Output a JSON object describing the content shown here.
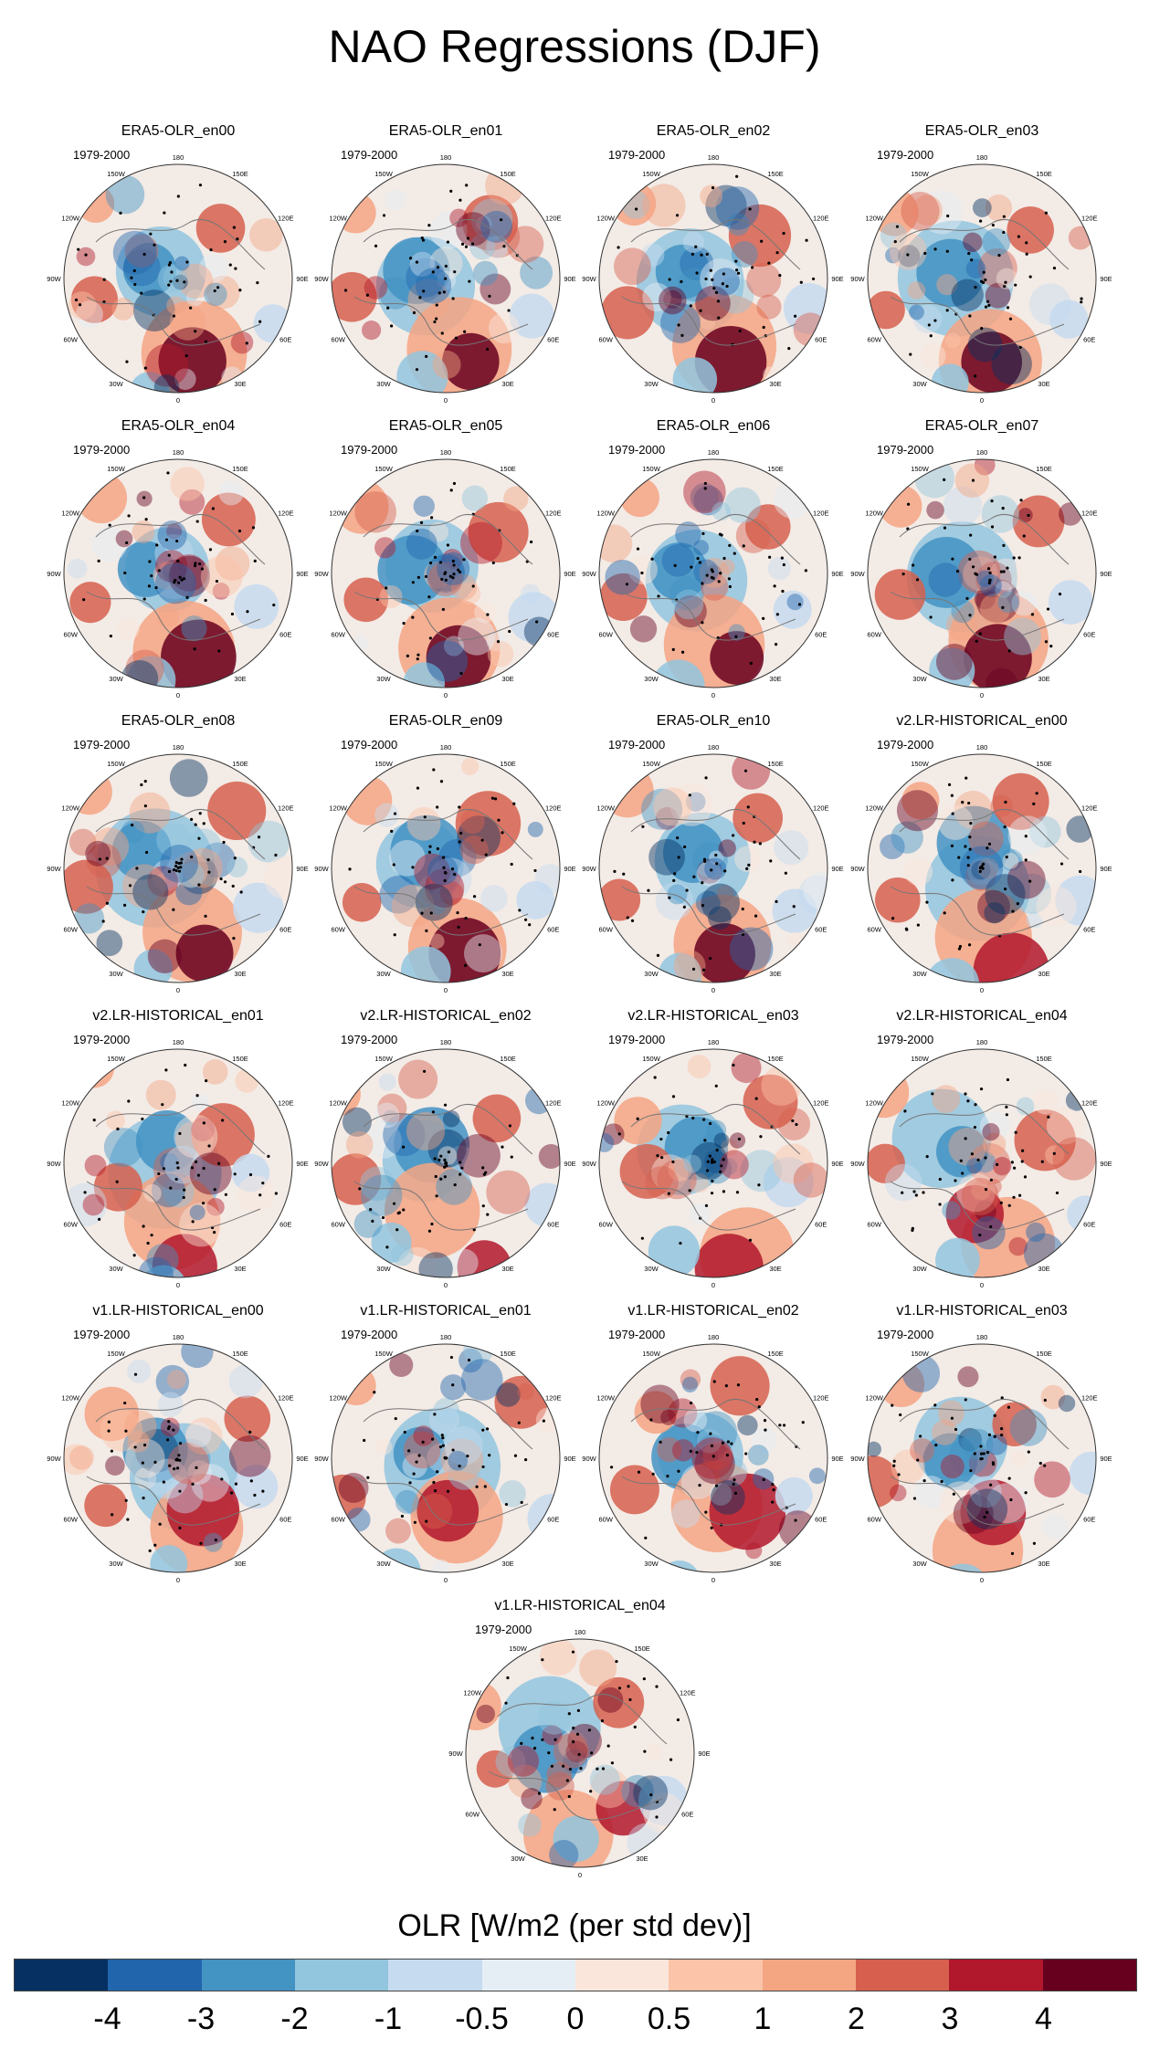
{
  "figure": {
    "title": "NAO Regressions (DJF)"
  },
  "panels": [
    {
      "title": "ERA5-OLR_en00",
      "period": "1979-2000"
    },
    {
      "title": "ERA5-OLR_en01",
      "period": "1979-2000"
    },
    {
      "title": "ERA5-OLR_en02",
      "period": "1979-2000"
    },
    {
      "title": "ERA5-OLR_en03",
      "period": "1979-2000"
    },
    {
      "title": "ERA5-OLR_en04",
      "period": "1979-2000"
    },
    {
      "title": "ERA5-OLR_en05",
      "period": "1979-2000"
    },
    {
      "title": "ERA5-OLR_en06",
      "period": "1979-2000"
    },
    {
      "title": "ERA5-OLR_en07",
      "period": "1979-2000"
    },
    {
      "title": "ERA5-OLR_en08",
      "period": "1979-2000"
    },
    {
      "title": "ERA5-OLR_en09",
      "period": "1979-2000"
    },
    {
      "title": "ERA5-OLR_en10",
      "period": "1979-2000"
    },
    {
      "title": "v2.LR-HISTORICAL_en00",
      "period": "1979-2000"
    },
    {
      "title": "v2.LR-HISTORICAL_en01",
      "period": "1979-2000"
    },
    {
      "title": "v2.LR-HISTORICAL_en02",
      "period": "1979-2000"
    },
    {
      "title": "v2.LR-HISTORICAL_en03",
      "period": "1979-2000"
    },
    {
      "title": "v2.LR-HISTORICAL_en04",
      "period": "1979-2000"
    },
    {
      "title": "v1.LR-HISTORICAL_en00",
      "period": "1979-2000"
    },
    {
      "title": "v1.LR-HISTORICAL_en01",
      "period": "1979-2000"
    },
    {
      "title": "v1.LR-HISTORICAL_en02",
      "period": "1979-2000"
    },
    {
      "title": "v1.LR-HISTORICAL_en03",
      "period": "1979-2000"
    },
    {
      "title": "v1.LR-HISTORICAL_en04",
      "period": "1979-2000"
    }
  ],
  "map": {
    "projection": "north-polar-stereographic",
    "longitude_labels": [
      "180",
      "150E",
      "120E",
      "90E",
      "60E",
      "30E",
      "0",
      "30W",
      "60W",
      "90W",
      "120W",
      "150W"
    ]
  },
  "colorbar": {
    "title": "OLR [W/m2 (per std dev)]",
    "ticks": [
      "-4",
      "-3",
      "-2",
      "-1",
      "-0.5",
      "0",
      "0.5",
      "1",
      "2",
      "3",
      "4"
    ],
    "colors": [
      "#053061",
      "#2166ac",
      "#4393c3",
      "#92c5de",
      "#c6dbef",
      "#e6eef5",
      "#fbe6dc",
      "#fcc4a8",
      "#f4a582",
      "#d6604d",
      "#b2182b",
      "#67001f"
    ]
  },
  "chart_data": {
    "type": "heatmap",
    "title": "NAO Regressions (DJF)",
    "variable": "OLR [W/m2 (per std dev)]",
    "season": "DJF",
    "period": "1979-2000",
    "projection": "north-polar-stereographic",
    "levels": [
      -4,
      -3,
      -2,
      -1,
      -0.5,
      0,
      0.5,
      1,
      2,
      3,
      4
    ],
    "members": [
      "ERA5-OLR_en00",
      "ERA5-OLR_en01",
      "ERA5-OLR_en02",
      "ERA5-OLR_en03",
      "ERA5-OLR_en04",
      "ERA5-OLR_en05",
      "ERA5-OLR_en06",
      "ERA5-OLR_en07",
      "ERA5-OLR_en08",
      "ERA5-OLR_en09",
      "ERA5-OLR_en10",
      "v2.LR-HISTORICAL_en00",
      "v2.LR-HISTORICAL_en01",
      "v2.LR-HISTORICAL_en02",
      "v2.LR-HISTORICAL_en03",
      "v2.LR-HISTORICAL_en04",
      "v1.LR-HISTORICAL_en00",
      "v1.LR-HISTORICAL_en01",
      "v1.LR-HISTORICAL_en02",
      "v1.LR-HISTORICAL_en03",
      "v1.LR-HISTORICAL_en04"
    ]
  }
}
